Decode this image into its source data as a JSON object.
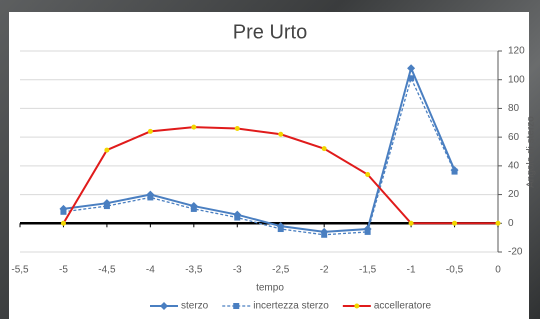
{
  "chart_data": {
    "type": "line",
    "title": "Pre Urto",
    "x_label": "tempo",
    "y_label": "Angolo di sterzo",
    "x": [
      -5,
      -4.5,
      -4,
      -3.5,
      -3,
      -2.5,
      -2,
      -1.5,
      -1,
      -0.5,
      0
    ],
    "series": [
      {
        "name": "sterzo",
        "color": "#4a7fc1",
        "marker": "diamond",
        "dash": false,
        "values": [
          10,
          14,
          20,
          12,
          6,
          -2,
          -6,
          -4,
          108,
          37,
          null
        ]
      },
      {
        "name": "incertezza sterzo",
        "color": "#4a7fc1",
        "marker": "square",
        "dash": true,
        "values": [
          8,
          12,
          18,
          10,
          4,
          -4,
          -8,
          -6,
          101,
          36,
          null
        ]
      },
      {
        "name": "accelleratore",
        "color": "#e01b1b",
        "marker": "circle",
        "marker_color": "#f2d600",
        "dash": false,
        "values": [
          0,
          51,
          64,
          67,
          66,
          62,
          52,
          34,
          0,
          0,
          0
        ]
      }
    ],
    "xlim": [
      -5.5,
      0
    ],
    "xticks": [
      {
        "value": -5.5,
        "label": "-5,5"
      },
      -5,
      {
        "value": -4.5,
        "label": "-4,5"
      },
      -4,
      {
        "value": -3.5,
        "label": "-3,5"
      },
      -3,
      {
        "value": -2.5,
        "label": "-2,5"
      },
      -2,
      {
        "value": -1.5,
        "label": "-1,5"
      },
      -1,
      {
        "value": -0.5,
        "label": "-0,5"
      },
      0
    ],
    "ylim": [
      -20,
      120
    ],
    "yticks": [
      -20,
      0,
      20,
      40,
      60,
      80,
      100,
      120
    ],
    "grid": true
  }
}
